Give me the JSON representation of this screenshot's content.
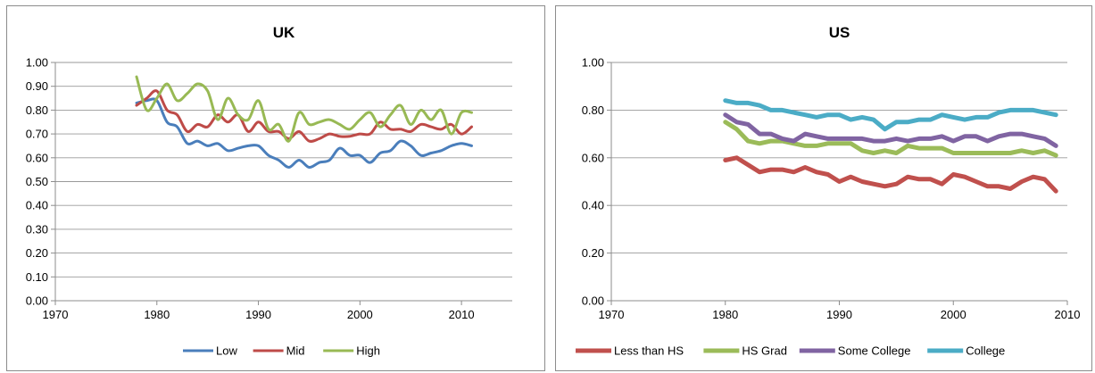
{
  "chart_data": [
    {
      "type": "line",
      "title": "UK",
      "xlabel": "",
      "ylabel": "",
      "xlim": [
        1970,
        2015
      ],
      "ylim": [
        0,
        1
      ],
      "x_ticks": [
        "1970",
        "1980",
        "1990",
        "2000",
        "2010"
      ],
      "y_ticks": [
        "0.00",
        "0.10",
        "0.20",
        "0.30",
        "0.40",
        "0.50",
        "0.60",
        "0.70",
        "0.80",
        "0.90",
        "1.00"
      ],
      "grid": true,
      "legend": "bottom",
      "smooth": true,
      "series": [
        {
          "name": "Low",
          "color": "#4a7ebb",
          "x": [
            1978,
            1979,
            1980,
            1981,
            1982,
            1983,
            1984,
            1985,
            1986,
            1987,
            1988,
            1989,
            1990,
            1991,
            1992,
            1993,
            1994,
            1995,
            1996,
            1997,
            1998,
            1999,
            2000,
            2001,
            2002,
            2003,
            2004,
            2005,
            2006,
            2007,
            2008,
            2009,
            2010,
            2011
          ],
          "values": [
            0.83,
            0.84,
            0.84,
            0.75,
            0.73,
            0.66,
            0.67,
            0.65,
            0.66,
            0.63,
            0.64,
            0.65,
            0.65,
            0.61,
            0.59,
            0.56,
            0.59,
            0.56,
            0.58,
            0.59,
            0.64,
            0.61,
            0.61,
            0.58,
            0.62,
            0.63,
            0.67,
            0.65,
            0.61,
            0.62,
            0.63,
            0.65,
            0.66,
            0.65
          ]
        },
        {
          "name": "Mid",
          "color": "#be4b48",
          "x": [
            1978,
            1979,
            1980,
            1981,
            1982,
            1983,
            1984,
            1985,
            1986,
            1987,
            1988,
            1989,
            1990,
            1991,
            1992,
            1993,
            1994,
            1995,
            1996,
            1997,
            1998,
            1999,
            2000,
            2001,
            2002,
            2003,
            2004,
            2005,
            2006,
            2007,
            2008,
            2009,
            2010,
            2011
          ],
          "values": [
            0.82,
            0.85,
            0.88,
            0.8,
            0.78,
            0.71,
            0.74,
            0.73,
            0.78,
            0.75,
            0.78,
            0.71,
            0.75,
            0.71,
            0.71,
            0.68,
            0.71,
            0.67,
            0.68,
            0.7,
            0.69,
            0.69,
            0.7,
            0.7,
            0.75,
            0.72,
            0.72,
            0.71,
            0.74,
            0.73,
            0.72,
            0.74,
            0.7,
            0.73
          ]
        },
        {
          "name": "High",
          "color": "#98b954",
          "x": [
            1978,
            1979,
            1980,
            1981,
            1982,
            1983,
            1984,
            1985,
            1986,
            1987,
            1988,
            1989,
            1990,
            1991,
            1992,
            1993,
            1994,
            1995,
            1996,
            1997,
            1998,
            1999,
            2000,
            2001,
            2002,
            2003,
            2004,
            2005,
            2006,
            2007,
            2008,
            2009,
            2010,
            2011
          ],
          "values": [
            0.94,
            0.8,
            0.85,
            0.91,
            0.84,
            0.87,
            0.91,
            0.88,
            0.76,
            0.85,
            0.78,
            0.76,
            0.84,
            0.72,
            0.74,
            0.67,
            0.79,
            0.74,
            0.75,
            0.76,
            0.74,
            0.72,
            0.76,
            0.79,
            0.73,
            0.78,
            0.82,
            0.74,
            0.8,
            0.76,
            0.8,
            0.7,
            0.79,
            0.79
          ]
        }
      ]
    },
    {
      "type": "line",
      "title": "US",
      "xlabel": "",
      "ylabel": "",
      "xlim": [
        1970,
        2010
      ],
      "ylim": [
        0,
        1
      ],
      "x_ticks": [
        "1970",
        "1980",
        "1990",
        "2000",
        "2010"
      ],
      "y_ticks": [
        "0.00",
        "0.20",
        "0.40",
        "0.60",
        "0.80",
        "1.00"
      ],
      "grid": true,
      "legend": "bottom",
      "smooth": false,
      "series": [
        {
          "name": "Less than HS",
          "color": "#c0504d",
          "x": [
            1980,
            1981,
            1982,
            1983,
            1984,
            1985,
            1986,
            1987,
            1988,
            1989,
            1990,
            1991,
            1992,
            1993,
            1994,
            1995,
            1996,
            1997,
            1998,
            1999,
            2000,
            2001,
            2002,
            2003,
            2004,
            2005,
            2006,
            2007,
            2008,
            2009
          ],
          "values": [
            0.59,
            0.6,
            0.57,
            0.54,
            0.55,
            0.55,
            0.54,
            0.56,
            0.54,
            0.53,
            0.5,
            0.52,
            0.5,
            0.49,
            0.48,
            0.49,
            0.52,
            0.51,
            0.51,
            0.49,
            0.53,
            0.52,
            0.5,
            0.48,
            0.48,
            0.47,
            0.5,
            0.52,
            0.51,
            0.46
          ]
        },
        {
          "name": "HS Grad",
          "color": "#9bbb59",
          "x": [
            1980,
            1981,
            1982,
            1983,
            1984,
            1985,
            1986,
            1987,
            1988,
            1989,
            1990,
            1991,
            1992,
            1993,
            1994,
            1995,
            1996,
            1997,
            1998,
            1999,
            2000,
            2001,
            2002,
            2003,
            2004,
            2005,
            2006,
            2007,
            2008,
            2009
          ],
          "values": [
            0.75,
            0.72,
            0.67,
            0.66,
            0.67,
            0.67,
            0.66,
            0.65,
            0.65,
            0.66,
            0.66,
            0.66,
            0.63,
            0.62,
            0.63,
            0.62,
            0.65,
            0.64,
            0.64,
            0.64,
            0.62,
            0.62,
            0.62,
            0.62,
            0.62,
            0.62,
            0.63,
            0.62,
            0.63,
            0.61
          ]
        },
        {
          "name": "Some College",
          "color": "#8064a2",
          "x": [
            1980,
            1981,
            1982,
            1983,
            1984,
            1985,
            1986,
            1987,
            1988,
            1989,
            1990,
            1991,
            1992,
            1993,
            1994,
            1995,
            1996,
            1997,
            1998,
            1999,
            2000,
            2001,
            2002,
            2003,
            2004,
            2005,
            2006,
            2007,
            2008,
            2009
          ],
          "values": [
            0.78,
            0.75,
            0.74,
            0.7,
            0.7,
            0.68,
            0.67,
            0.7,
            0.69,
            0.68,
            0.68,
            0.68,
            0.68,
            0.67,
            0.67,
            0.68,
            0.67,
            0.68,
            0.68,
            0.69,
            0.67,
            0.69,
            0.69,
            0.67,
            0.69,
            0.7,
            0.7,
            0.69,
            0.68,
            0.65
          ]
        },
        {
          "name": "College",
          "color": "#4bacc6",
          "x": [
            1980,
            1981,
            1982,
            1983,
            1984,
            1985,
            1986,
            1987,
            1988,
            1989,
            1990,
            1991,
            1992,
            1993,
            1994,
            1995,
            1996,
            1997,
            1998,
            1999,
            2000,
            2001,
            2002,
            2003,
            2004,
            2005,
            2006,
            2007,
            2008,
            2009
          ],
          "values": [
            0.84,
            0.83,
            0.83,
            0.82,
            0.8,
            0.8,
            0.79,
            0.78,
            0.77,
            0.78,
            0.78,
            0.76,
            0.77,
            0.76,
            0.72,
            0.75,
            0.75,
            0.76,
            0.76,
            0.78,
            0.77,
            0.76,
            0.77,
            0.77,
            0.79,
            0.8,
            0.8,
            0.8,
            0.79,
            0.78
          ]
        }
      ]
    }
  ]
}
